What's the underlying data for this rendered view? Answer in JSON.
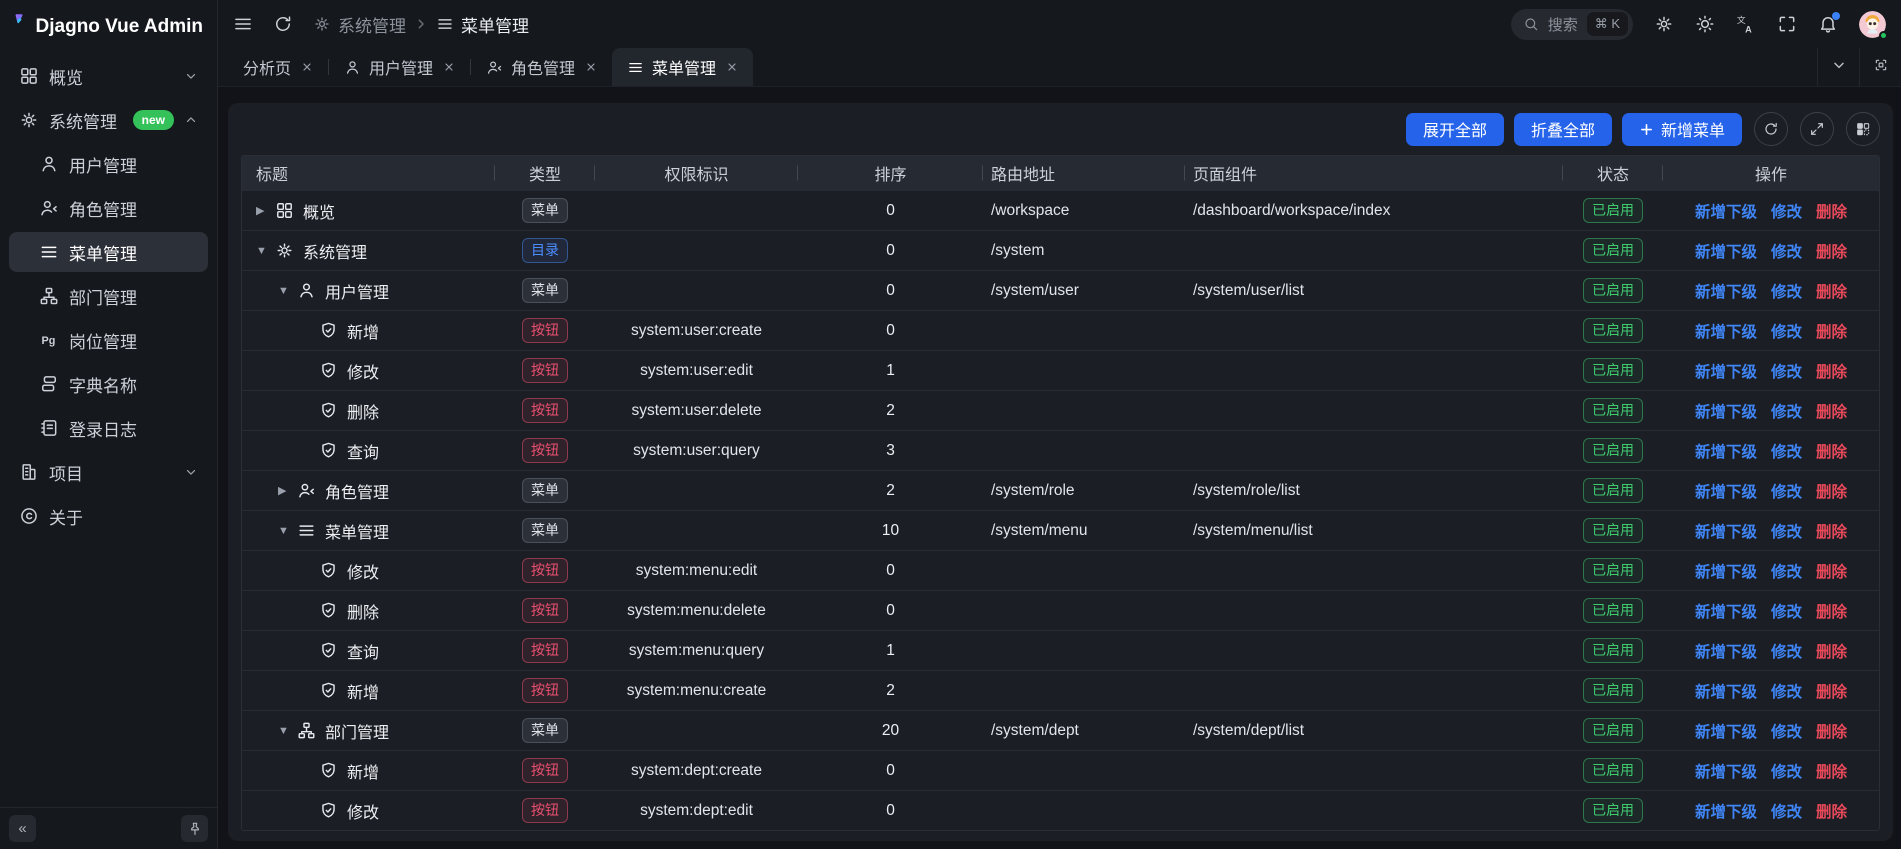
{
  "colors": {
    "accent": "#2563eb",
    "success": "#3fca6e",
    "danger": "#e8495a",
    "link_blue": "#3f85f5",
    "dir_blue": "#4c8dff",
    "new_badge_green": "#34c159"
  },
  "sidebar": {
    "logo_title": "Djagno Vue Admin",
    "items": [
      {
        "label": "概览",
        "icon": "dashboard-icon",
        "level": 0,
        "chevron": "down"
      },
      {
        "label": "系统管理",
        "icon": "gear-icon",
        "level": 0,
        "chevron": "up",
        "badge": "new"
      },
      {
        "label": "用户管理",
        "icon": "user-icon",
        "level": 1
      },
      {
        "label": "角色管理",
        "icon": "user-check-icon",
        "level": 1
      },
      {
        "label": "菜单管理",
        "icon": "menu-list-icon",
        "level": 1,
        "active": true
      },
      {
        "label": "部门管理",
        "icon": "org-chart-icon",
        "level": 1
      },
      {
        "label": "岗位管理",
        "icon": "pg-icon",
        "level": 1
      },
      {
        "label": "字典名称",
        "icon": "dict-icon",
        "level": 1
      },
      {
        "label": "登录日志",
        "icon": "log-icon",
        "level": 1
      },
      {
        "label": "项目",
        "icon": "building-icon",
        "level": 0,
        "chevron": "down"
      },
      {
        "label": "关于",
        "icon": "copyright-icon",
        "level": 0
      }
    ],
    "collapse_glyph": "«"
  },
  "topbar": {
    "breadcrumb": [
      {
        "label": "系统管理",
        "icon": "gear-icon"
      },
      {
        "label": "菜单管理",
        "icon": "menu-list-icon",
        "current": true
      }
    ],
    "search": {
      "placeholder": "搜索",
      "shortcut": "⌘ K"
    }
  },
  "tabs": [
    {
      "label": "分析页"
    },
    {
      "label": "用户管理",
      "icon": "user-icon"
    },
    {
      "label": "角色管理",
      "icon": "user-check-icon"
    },
    {
      "label": "菜单管理",
      "icon": "menu-list-icon",
      "active": true
    }
  ],
  "toolbar": {
    "expand_all": "展开全部",
    "collapse_all": "折叠全部",
    "add_menu": "新增菜单"
  },
  "table": {
    "columns": [
      "标题",
      "类型",
      "权限标识",
      "排序",
      "路由地址",
      "页面组件",
      "状态",
      "操作"
    ],
    "status_enabled": "已启用",
    "actions": {
      "add_child": "新增下级",
      "edit": "修改",
      "delete": "删除"
    },
    "type_labels": {
      "menu": "菜单",
      "dir": "目录",
      "btn": "按钮"
    },
    "rows": [
      {
        "level": 0,
        "arrow": "right",
        "icon": "dashboard-icon",
        "title": "概览",
        "type": "menu",
        "perm": "",
        "order": "0",
        "path": "/workspace",
        "component": "/dashboard/workspace/index"
      },
      {
        "level": 0,
        "arrow": "down",
        "icon": "gear-icon",
        "title": "系统管理",
        "type": "dir",
        "perm": "",
        "order": "0",
        "path": "/system",
        "component": ""
      },
      {
        "level": 1,
        "arrow": "down",
        "icon": "user-icon",
        "title": "用户管理",
        "type": "menu",
        "perm": "",
        "order": "0",
        "path": "/system/user",
        "component": "/system/user/list"
      },
      {
        "level": 2,
        "arrow": "",
        "icon": "shield-icon",
        "title": "新增",
        "type": "btn",
        "perm": "system:user:create",
        "order": "0",
        "path": "",
        "component": ""
      },
      {
        "level": 2,
        "arrow": "",
        "icon": "shield-icon",
        "title": "修改",
        "type": "btn",
        "perm": "system:user:edit",
        "order": "1",
        "path": "",
        "component": ""
      },
      {
        "level": 2,
        "arrow": "",
        "icon": "shield-icon",
        "title": "删除",
        "type": "btn",
        "perm": "system:user:delete",
        "order": "2",
        "path": "",
        "component": ""
      },
      {
        "level": 2,
        "arrow": "",
        "icon": "shield-icon",
        "title": "查询",
        "type": "btn",
        "perm": "system:user:query",
        "order": "3",
        "path": "",
        "component": ""
      },
      {
        "level": 1,
        "arrow": "right",
        "icon": "user-check-icon",
        "title": "角色管理",
        "type": "menu",
        "perm": "",
        "order": "2",
        "path": "/system/role",
        "component": "/system/role/list"
      },
      {
        "level": 1,
        "arrow": "down",
        "icon": "menu-list-icon",
        "title": "菜单管理",
        "type": "menu",
        "perm": "",
        "order": "10",
        "path": "/system/menu",
        "component": "/system/menu/list"
      },
      {
        "level": 2,
        "arrow": "",
        "icon": "shield-icon",
        "title": "修改",
        "type": "btn",
        "perm": "system:menu:edit",
        "order": "0",
        "path": "",
        "component": ""
      },
      {
        "level": 2,
        "arrow": "",
        "icon": "shield-icon",
        "title": "删除",
        "type": "btn",
        "perm": "system:menu:delete",
        "order": "0",
        "path": "",
        "component": ""
      },
      {
        "level": 2,
        "arrow": "",
        "icon": "shield-icon",
        "title": "查询",
        "type": "btn",
        "perm": "system:menu:query",
        "order": "1",
        "path": "",
        "component": ""
      },
      {
        "level": 2,
        "arrow": "",
        "icon": "shield-icon",
        "title": "新增",
        "type": "btn",
        "perm": "system:menu:create",
        "order": "2",
        "path": "",
        "component": ""
      },
      {
        "level": 1,
        "arrow": "down",
        "icon": "org-chart-icon",
        "title": "部门管理",
        "type": "menu",
        "perm": "",
        "order": "20",
        "path": "/system/dept",
        "component": "/system/dept/list"
      },
      {
        "level": 2,
        "arrow": "",
        "icon": "shield-icon",
        "title": "新增",
        "type": "btn",
        "perm": "system:dept:create",
        "order": "0",
        "path": "",
        "component": ""
      },
      {
        "level": 2,
        "arrow": "",
        "icon": "shield-icon",
        "title": "修改",
        "type": "btn",
        "perm": "system:dept:edit",
        "order": "0",
        "path": "",
        "component": ""
      }
    ]
  }
}
